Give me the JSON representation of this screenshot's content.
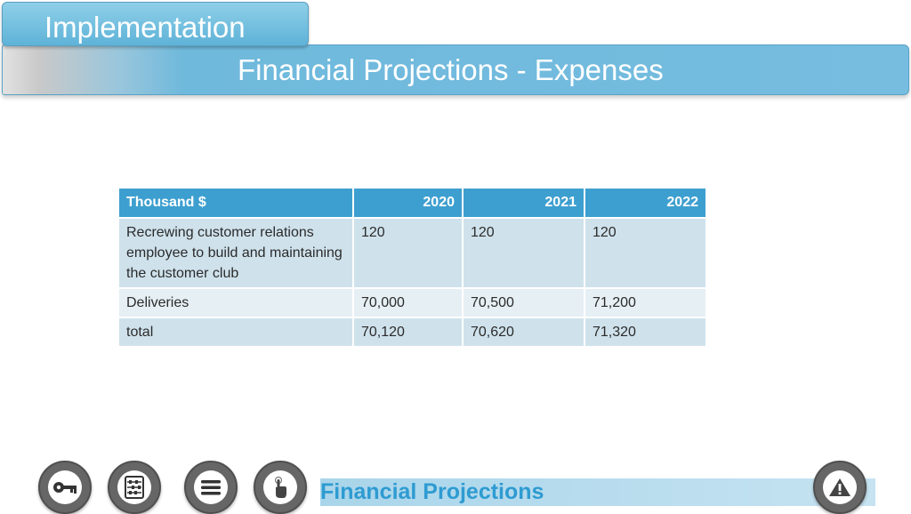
{
  "header": {
    "section_label": "Implementation",
    "title": "Financial Projections - Expenses"
  },
  "table": {
    "headers": [
      "Thousand $",
      "2020",
      "2021",
      "2022"
    ],
    "rows": [
      [
        "Recrewing customer relations employee to build and maintaining the customer club",
        "120",
        "120",
        "120"
      ],
      [
        "Deliveries",
        "70,000",
        "70,500",
        "71,200"
      ],
      [
        "total",
        "70,120",
        "70,620",
        "71,320"
      ]
    ]
  },
  "footer": {
    "label": "Financial Projections",
    "nav_icons": [
      "key-icon",
      "abacus-icon",
      "menu-icon",
      "hand-pointer-icon"
    ],
    "warning_icon": "warning-icon"
  },
  "colors": {
    "accent": "#3d9fcf",
    "header_blue": "#6fb9dc",
    "row_dark": "#cfe2ec",
    "row_light": "#e6eff4",
    "footer_text": "#2e9bd1"
  }
}
